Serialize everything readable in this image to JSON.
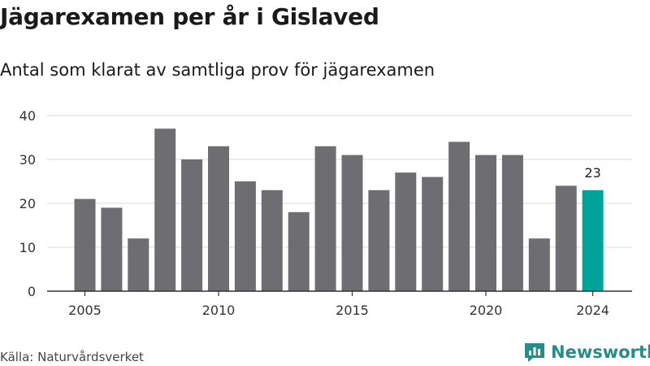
{
  "header": {
    "title": "Jägarexamen per år i Gislaved",
    "subtitle": "Antal som klarat av samtliga prov för jägarexamen"
  },
  "footer": {
    "source": "Källa: Naturvårdsverket",
    "brand": "Newsworthy"
  },
  "colors": {
    "bar": "#6e6d72",
    "highlight": "#00a39a",
    "grid": "#d9d9d9",
    "axis": "#333333",
    "brand": "#2a8c8a"
  },
  "chart_data": {
    "type": "bar",
    "categories": [
      2005,
      2006,
      2007,
      2008,
      2009,
      2010,
      2011,
      2012,
      2013,
      2014,
      2015,
      2016,
      2017,
      2018,
      2019,
      2020,
      2021,
      2022,
      2023,
      2024
    ],
    "values": [
      21,
      19,
      12,
      37,
      30,
      33,
      25,
      23,
      18,
      33,
      31,
      23,
      27,
      26,
      34,
      31,
      31,
      12,
      24,
      23
    ],
    "x_ticks": [
      2005,
      2010,
      2015,
      2020,
      2024
    ],
    "y_ticks": [
      0,
      10,
      20,
      30,
      40
    ],
    "ylim": [
      0,
      40
    ],
    "grid": true,
    "highlight": {
      "category": 2024,
      "label": "23"
    }
  }
}
